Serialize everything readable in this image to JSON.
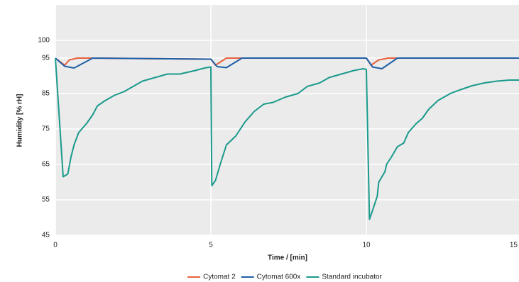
{
  "chart_data": {
    "type": "line",
    "x_label": "Time / [min]",
    "y_label": "Humidity [% rH]",
    "xlim": [
      0,
      15
    ],
    "xticks": [
      0,
      5,
      10,
      15
    ],
    "ylim": [
      45,
      110
    ],
    "yticks": [
      45,
      55,
      65,
      75,
      85,
      95,
      100
    ],
    "grid": true,
    "legend": "bottom",
    "series": [
      {
        "name": "Cytomat 2",
        "color": "#e8603c",
        "x": [
          0,
          0.3,
          0.45,
          0.7,
          1.2,
          5.0,
          5.15,
          5.5,
          6,
          10,
          10.15,
          10.4,
          10.7,
          11,
          15
        ],
        "values": [
          95,
          93,
          94.5,
          95,
          95,
          94.7,
          93,
          95,
          95,
          95,
          93,
          94.5,
          95,
          95,
          95
        ]
      },
      {
        "name": "Cytomat 600x",
        "color": "#1f5fa6",
        "x": [
          0,
          0.3,
          0.6,
          1.2,
          5,
          5.2,
          5.5,
          6,
          10,
          10.2,
          10.5,
          11,
          15
        ],
        "values": [
          95,
          92.7,
          92.2,
          95,
          94.7,
          92.6,
          92.3,
          95,
          95,
          92.5,
          92,
          95,
          95
        ]
      },
      {
        "name": "Standard incubator",
        "color": "#1a9a8c",
        "x": [
          0,
          0.25,
          0.4,
          0.5,
          0.6,
          0.75,
          1,
          1.2,
          1.35,
          1.6,
          1.9,
          2.2,
          2.5,
          2.8,
          3.2,
          3.6,
          4.0,
          4.5,
          4.8,
          5.0,
          5.03,
          5.15,
          5.3,
          5.5,
          5.8,
          6.1,
          6.4,
          6.7,
          7,
          7.4,
          7.8,
          8.1,
          8.5,
          8.8,
          9.2,
          9.6,
          9.9,
          10,
          10.1,
          10.2,
          10.35,
          10.4,
          10.6,
          10.65,
          10.8,
          11,
          11.2,
          11.35,
          11.6,
          11.8,
          12.0,
          12.3,
          12.7,
          13,
          13.4,
          13.8,
          14.2,
          14.6,
          15
        ],
        "values": [
          95,
          61.5,
          62.3,
          67,
          70.5,
          74,
          76.5,
          79,
          81.5,
          83,
          84.5,
          85.5,
          87,
          88.5,
          89.5,
          90.5,
          90.5,
          91.5,
          92.2,
          92.5,
          59,
          60.5,
          65,
          70.5,
          73,
          77,
          80,
          82,
          82.5,
          84,
          85,
          87,
          88,
          89.5,
          90.5,
          91.5,
          92,
          91.8,
          49.5,
          52,
          56,
          60,
          63,
          65,
          67,
          70,
          71,
          74,
          76.5,
          78,
          80.5,
          83,
          85,
          86,
          87.2,
          88,
          88.5,
          88.8,
          88.8
        ]
      }
    ]
  }
}
